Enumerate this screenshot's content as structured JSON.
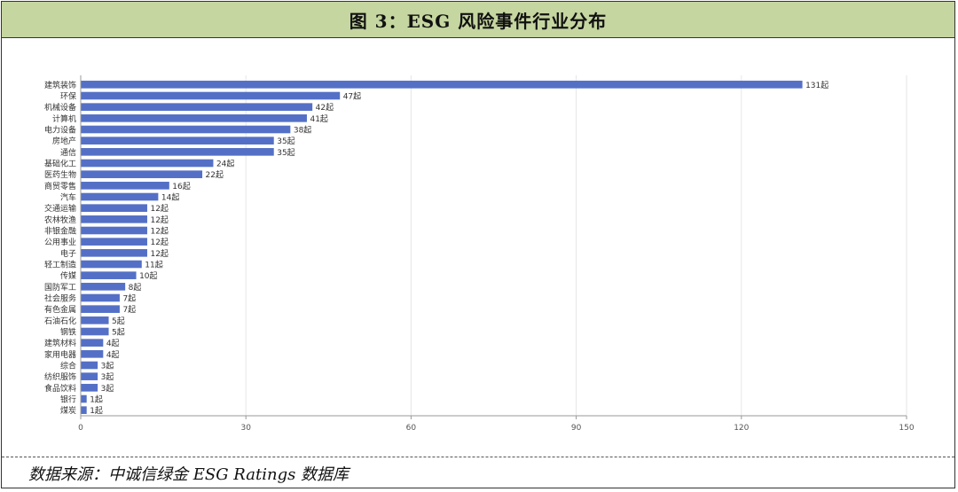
{
  "header": {
    "title": "图 3：ESG 风险事件行业分布"
  },
  "footer": {
    "source": "数据来源：中诚信绿金 ESG Ratings 数据库"
  },
  "colors": {
    "bar": "#5470c6",
    "grid": "#e6e6e6",
    "axis": "#999999",
    "text": "#555555",
    "label": "#333333"
  },
  "chart_data": {
    "type": "bar",
    "orientation": "horizontal",
    "categories": [
      "建筑装饰",
      "环保",
      "机械设备",
      "计算机",
      "电力设备",
      "房地产",
      "通信",
      "基础化工",
      "医药生物",
      "商贸零售",
      "汽车",
      "交通运输",
      "农林牧渔",
      "非银金融",
      "公用事业",
      "电子",
      "轻工制造",
      "传媒",
      "国防军工",
      "社会服务",
      "有色金属",
      "石油石化",
      "钢铁",
      "建筑材料",
      "家用电器",
      "综合",
      "纺织服饰",
      "食品饮料",
      "银行",
      "煤炭"
    ],
    "values": [
      131,
      47,
      42,
      41,
      38,
      35,
      35,
      24,
      22,
      16,
      14,
      12,
      12,
      12,
      12,
      12,
      11,
      10,
      8,
      7,
      7,
      5,
      5,
      4,
      4,
      3,
      3,
      3,
      1,
      1
    ],
    "value_suffix": "起",
    "xlim": [
      0,
      150
    ],
    "xticks": [
      "0",
      "30",
      "60",
      "90",
      "120",
      "150"
    ],
    "grid": true
  }
}
